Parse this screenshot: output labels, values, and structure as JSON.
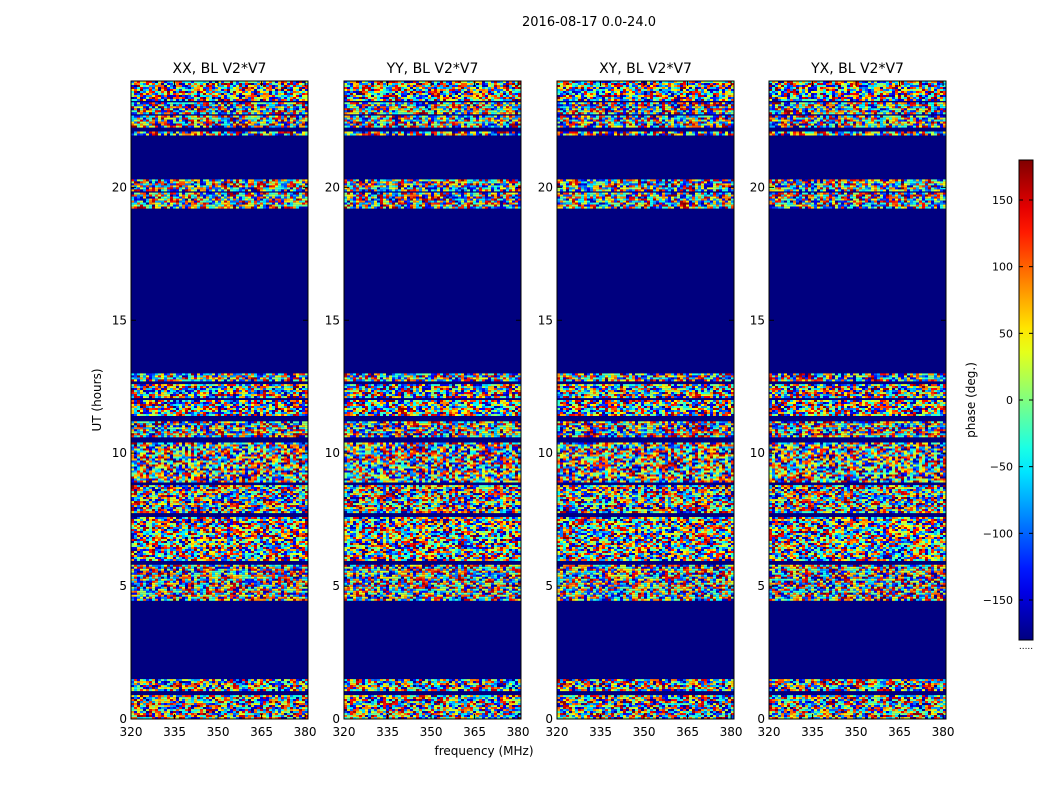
{
  "suptitle": "2016-08-17 0.0-24.0",
  "chart_data": {
    "type": "heatmap",
    "xlabel": "frequency (MHz)",
    "ylabel": "UT (hours)",
    "xlim": [
      320,
      381
    ],
    "ylim": [
      0,
      24
    ],
    "x_ticks": [
      320,
      335,
      350,
      365,
      380
    ],
    "y_ticks": [
      0,
      5,
      10,
      15,
      20
    ],
    "colorbar": {
      "label": "phase (deg.)",
      "range": [
        -180,
        180
      ],
      "ticks": [
        150,
        100,
        50,
        0,
        -50,
        -100,
        -150
      ],
      "tick_labels": [
        "150",
        "100",
        "50",
        "0",
        "−50",
        "−100",
        "−150"
      ],
      "colormap": "jet",
      "bottom_mark": "....."
    },
    "panels": [
      {
        "title": "XX, BL V2*V7"
      },
      {
        "title": "YY, BL V2*V7"
      },
      {
        "title": "XY, BL V2*V7"
      },
      {
        "title": "YX, BL V2*V7"
      }
    ],
    "no_data_color": "#00007f",
    "data_bands_ut_hours": [
      [
        0.0,
        0.9
      ],
      [
        1.1,
        1.5
      ],
      [
        4.5,
        5.8
      ],
      [
        6.0,
        7.6
      ],
      [
        7.8,
        8.8
      ],
      [
        8.9,
        10.4
      ],
      [
        10.6,
        11.2
      ],
      [
        11.4,
        12.0
      ],
      [
        12.1,
        12.6
      ],
      [
        12.7,
        13.0
      ],
      [
        19.2,
        19.8
      ],
      [
        19.9,
        20.3
      ],
      [
        22.0,
        22.1
      ],
      [
        22.3,
        22.7
      ],
      [
        22.8,
        23.2
      ],
      [
        23.3,
        24.0
      ]
    ]
  }
}
